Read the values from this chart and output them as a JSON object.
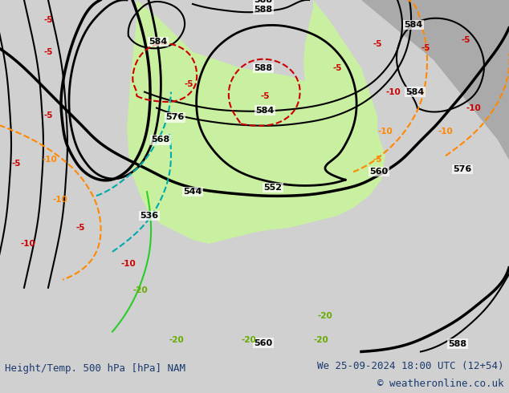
{
  "title_left": "Height/Temp. 500 hPa [hPa] NAM",
  "title_right": "We 25-09-2024 18:00 UTC (12+54)",
  "copyright": "© weatheronline.co.uk",
  "bg_color": "#d0d0d0",
  "map_bg_color": "#c8c8c8",
  "green_area_color": "#c8f0a0",
  "footer_bg": "#ffffff",
  "footer_text_color": "#1a3a6e",
  "title_text_color": "#1a3a6e",
  "copyright_color": "#1a3a6e",
  "figsize": [
    6.34,
    4.9
  ],
  "dpi": 100
}
